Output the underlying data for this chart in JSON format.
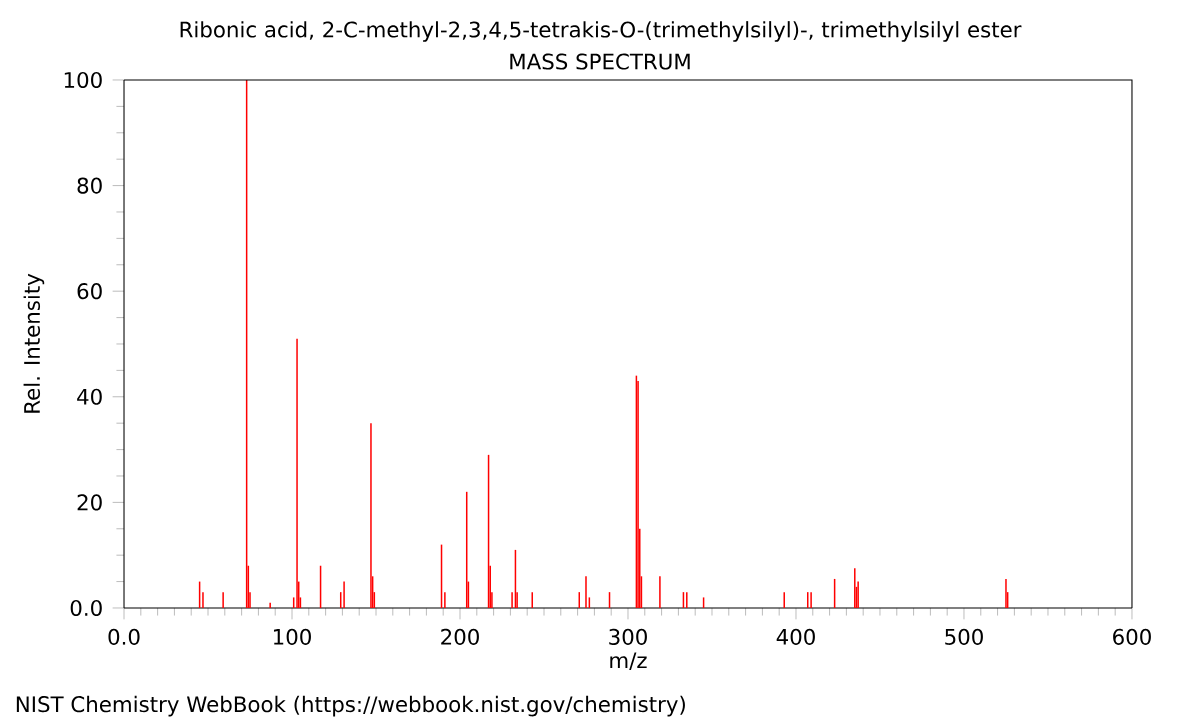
{
  "chart_data": {
    "type": "bar",
    "title": "Ribonic acid, 2-C-methyl-2,3,4,5-tetrakis-O-(trimethylsilyl)-, trimethylsilyl ester",
    "subtitle": "MASS SPECTRUM",
    "xlabel": "m/z",
    "ylabel": "Rel. Intensity",
    "x": [
      45,
      47,
      59,
      73,
      74,
      75,
      87,
      101,
      103,
      104,
      105,
      117,
      129,
      131,
      147,
      148,
      149,
      189,
      191,
      204,
      205,
      217,
      218,
      219,
      231,
      233,
      234,
      243,
      271,
      275,
      277,
      289,
      305,
      306,
      307,
      308,
      319,
      333,
      335,
      345,
      393,
      407,
      409,
      423,
      435,
      436,
      437,
      525,
      526
    ],
    "values": [
      5,
      3,
      3,
      100,
      8,
      3,
      1,
      2,
      51,
      5,
      2,
      8,
      3,
      5,
      35,
      6,
      3,
      12,
      3,
      22,
      5,
      29,
      8,
      3,
      3,
      11,
      3,
      3,
      3,
      6,
      2,
      3,
      44,
      43,
      15,
      6,
      6,
      3,
      3,
      2,
      3,
      3,
      3,
      5.5,
      7.5,
      4,
      5,
      5.5,
      3
    ],
    "color": "#ff0000",
    "xlim": [
      0,
      600
    ],
    "ylim": [
      0,
      100
    ],
    "xticks": [
      {
        "value": 0,
        "label": "0.0"
      },
      {
        "value": 100,
        "label": "100"
      },
      {
        "value": 200,
        "label": "200"
      },
      {
        "value": 300,
        "label": "300"
      },
      {
        "value": 400,
        "label": "400"
      },
      {
        "value": 500,
        "label": "500"
      },
      {
        "value": 600,
        "label": "600"
      }
    ],
    "yticks": [
      {
        "value": 0,
        "label": "0.0"
      },
      20,
      40,
      60,
      80,
      100
    ],
    "annotations": [
      "NIST Chemistry WebBook (https://webbook.nist.gov/chemistry)"
    ]
  }
}
